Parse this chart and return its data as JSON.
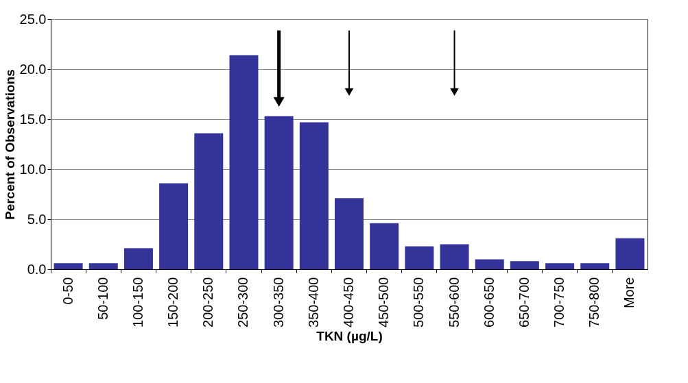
{
  "chart_data": {
    "type": "bar",
    "xlabel": "TKN (µg/L)",
    "ylabel": "Percent of Observations",
    "categories": [
      "0-50",
      "50-100",
      "100-150",
      "150-200",
      "200-250",
      "250-300",
      "300-350",
      "350-400",
      "400-450",
      "450-500",
      "500-550",
      "550-600",
      "600-650",
      "650-700",
      "700-750",
      "750-800",
      "More"
    ],
    "values": [
      0.6,
      0.6,
      2.1,
      8.6,
      13.6,
      21.4,
      15.3,
      14.7,
      7.1,
      4.6,
      2.3,
      2.5,
      1.0,
      0.8,
      0.6,
      0.6,
      3.1
    ],
    "color": "#333399",
    "ylim": [
      0,
      25
    ],
    "yticks": [
      {
        "value": 0,
        "label": "0.0"
      },
      {
        "value": 5,
        "label": "5.0"
      },
      {
        "value": 10,
        "label": "10.0"
      },
      {
        "value": 15,
        "label": "15.0"
      },
      {
        "value": 20,
        "label": "20.0"
      },
      {
        "value": 25,
        "label": "25.0"
      }
    ],
    "grid": "y"
  }
}
